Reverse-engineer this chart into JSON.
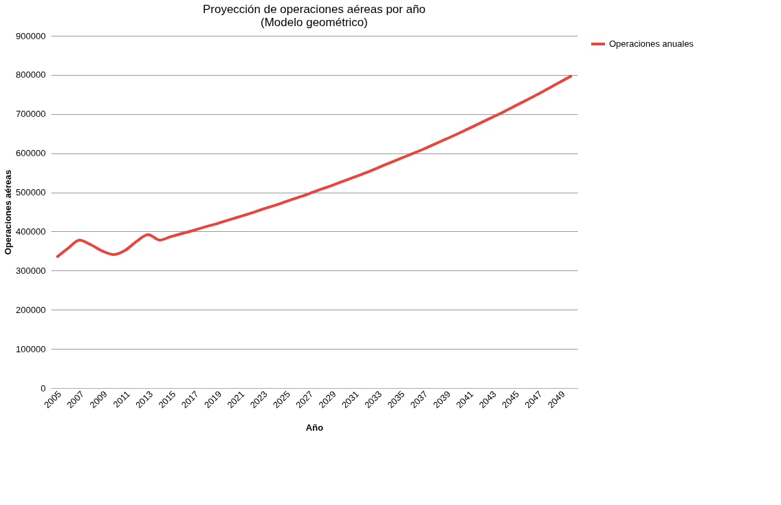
{
  "chart_data": {
    "type": "line",
    "title": [
      "Proyección de operaciones aéreas por año",
      "(Modelo geométrico)"
    ],
    "xlabel": "Año",
    "ylabel": "Operaciones aéreas",
    "categories": [
      "2005",
      null,
      "2007",
      null,
      "2009",
      null,
      "2011",
      null,
      "2013",
      null,
      "2015",
      null,
      "2017",
      null,
      "2019",
      null,
      "2021",
      null,
      "2023",
      null,
      "2025",
      null,
      "2027",
      null,
      "2029",
      null,
      "2031",
      null,
      "2033",
      null,
      "2035",
      null,
      "2037",
      null,
      "2039",
      null,
      "2041",
      null,
      "2043",
      null,
      "2045",
      null,
      "2047",
      null,
      "2049",
      null
    ],
    "series": [
      {
        "name": "Operaciones anuales",
        "color": "#e8453c",
        "values": [
          334000,
          357000,
          378000,
          366000,
          350000,
          341000,
          352000,
          375000,
          392000,
          378000,
          387000,
          395000,
          403000,
          412000,
          420000,
          429000,
          438000,
          447000,
          457000,
          466000,
          476000,
          486000,
          496000,
          507000,
          517000,
          528000,
          539000,
          550000,
          562000,
          574000,
          586000,
          598000,
          610000,
          623000,
          636000,
          649000,
          663000,
          677000,
          691000,
          705000,
          720000,
          735000,
          750000,
          766000,
          782000,
          798000
        ]
      }
    ],
    "ylim": [
      0,
      900000
    ],
    "yticks": [
      0,
      100000,
      200000,
      300000,
      400000,
      500000,
      600000,
      700000,
      800000,
      900000
    ],
    "grid": "y",
    "legend": "right",
    "marker": "none",
    "line_style": "solid"
  }
}
